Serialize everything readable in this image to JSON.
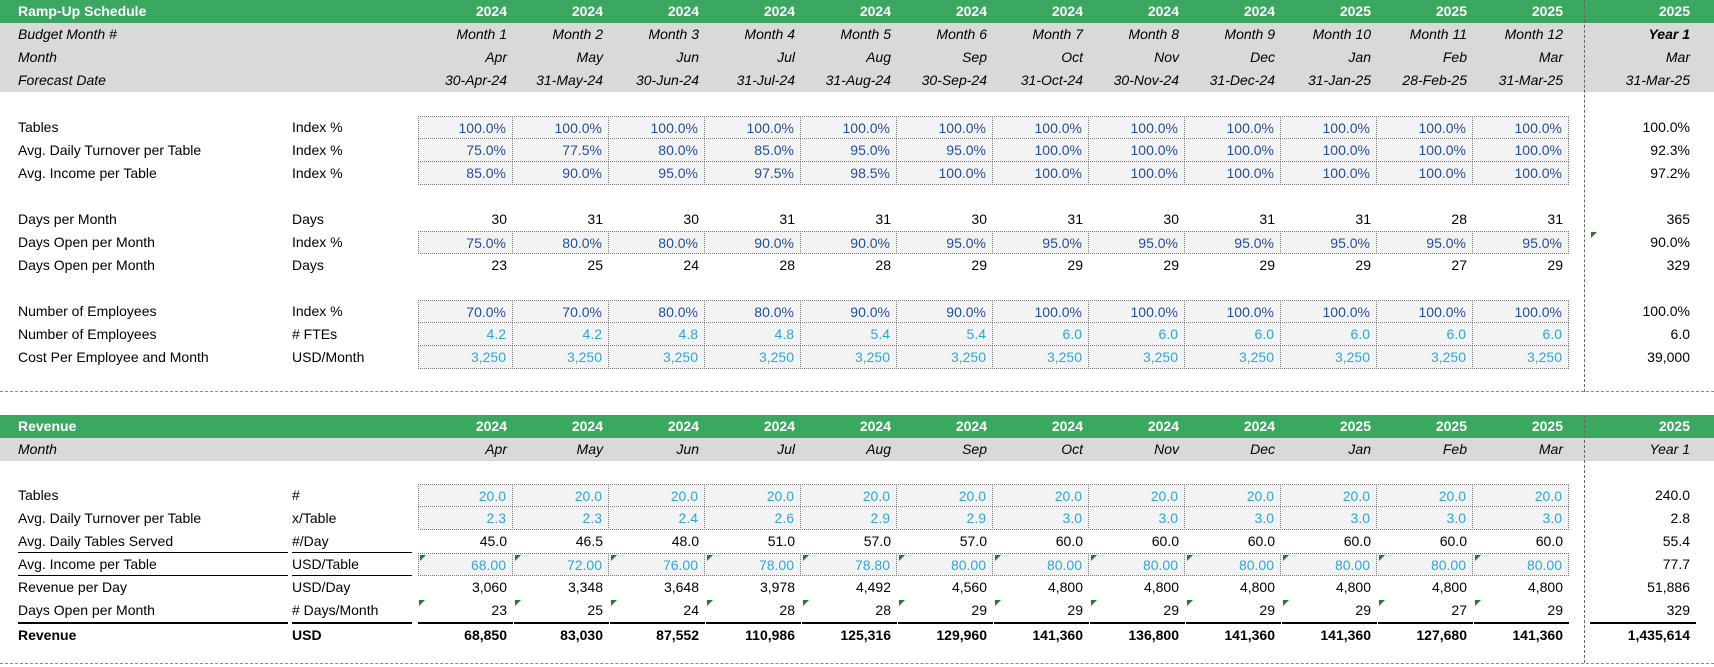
{
  "rampup": {
    "title": "Ramp-Up Schedule",
    "years": [
      "2024",
      "2024",
      "2024",
      "2024",
      "2024",
      "2024",
      "2024",
      "2024",
      "2024",
      "2025",
      "2025",
      "2025"
    ],
    "year_total": "2025",
    "budget_label": "Budget Month #",
    "budget_months": [
      "Month 1",
      "Month 2",
      "Month 3",
      "Month 4",
      "Month 5",
      "Month 6",
      "Month 7",
      "Month 8",
      "Month 9",
      "Month 10",
      "Month 11",
      "Month 12"
    ],
    "budget_total": "Year 1",
    "month_label": "Month",
    "months": [
      "Apr",
      "May",
      "Jun",
      "Jul",
      "Aug",
      "Sep",
      "Oct",
      "Nov",
      "Dec",
      "Jan",
      "Feb",
      "Mar"
    ],
    "month_total": "Mar",
    "forecast_label": "Forecast Date",
    "forecast_dates": [
      "30-Apr-24",
      "31-May-24",
      "30-Jun-24",
      "31-Jul-24",
      "31-Aug-24",
      "30-Sep-24",
      "31-Oct-24",
      "30-Nov-24",
      "31-Dec-24",
      "31-Jan-25",
      "28-Feb-25",
      "31-Mar-25"
    ],
    "forecast_total": "31-Mar-25",
    "rows": [
      {
        "label": "Tables",
        "unit": "Index %",
        "values": [
          "100.0%",
          "100.0%",
          "100.0%",
          "100.0%",
          "100.0%",
          "100.0%",
          "100.0%",
          "100.0%",
          "100.0%",
          "100.0%",
          "100.0%",
          "100.0%"
        ],
        "total": "100.0%"
      },
      {
        "label": "Avg. Daily Turnover per Table",
        "unit": "Index %",
        "values": [
          "75.0%",
          "77.5%",
          "80.0%",
          "85.0%",
          "95.0%",
          "95.0%",
          "100.0%",
          "100.0%",
          "100.0%",
          "100.0%",
          "100.0%",
          "100.0%"
        ],
        "total": "92.3%"
      },
      {
        "label": "Avg. Income per Table",
        "unit": "Index %",
        "values": [
          "85.0%",
          "90.0%",
          "95.0%",
          "97.5%",
          "98.5%",
          "100.0%",
          "100.0%",
          "100.0%",
          "100.0%",
          "100.0%",
          "100.0%",
          "100.0%"
        ],
        "total": "97.2%"
      },
      {
        "label": "Days per Month",
        "unit": "Days",
        "values": [
          "30",
          "31",
          "30",
          "31",
          "31",
          "30",
          "31",
          "30",
          "31",
          "31",
          "28",
          "31"
        ],
        "total": "365"
      },
      {
        "label": "Days Open per Month",
        "unit": "Index %",
        "values": [
          "75.0%",
          "80.0%",
          "80.0%",
          "90.0%",
          "90.0%",
          "95.0%",
          "95.0%",
          "95.0%",
          "95.0%",
          "95.0%",
          "95.0%",
          "95.0%"
        ],
        "total": "90.0%"
      },
      {
        "label": "Days Open per Month",
        "unit": "Days",
        "values": [
          "23",
          "25",
          "24",
          "28",
          "28",
          "29",
          "29",
          "29",
          "29",
          "29",
          "27",
          "29"
        ],
        "total": "329"
      },
      {
        "label": "Number of Employees",
        "unit": "Index %",
        "values": [
          "70.0%",
          "70.0%",
          "80.0%",
          "80.0%",
          "90.0%",
          "90.0%",
          "100.0%",
          "100.0%",
          "100.0%",
          "100.0%",
          "100.0%",
          "100.0%"
        ],
        "total": "100.0%"
      },
      {
        "label": "Number of Employees",
        "unit": "# FTEs",
        "values": [
          "4.2",
          "4.2",
          "4.8",
          "4.8",
          "5.4",
          "5.4",
          "6.0",
          "6.0",
          "6.0",
          "6.0",
          "6.0",
          "6.0"
        ],
        "total": "6.0"
      },
      {
        "label": "Cost Per Employee and Month",
        "unit": "USD/Month",
        "values": [
          "3,250",
          "3,250",
          "3,250",
          "3,250",
          "3,250",
          "3,250",
          "3,250",
          "3,250",
          "3,250",
          "3,250",
          "3,250",
          "3,250"
        ],
        "total": "39,000"
      }
    ]
  },
  "revenue": {
    "title": "Revenue",
    "years": [
      "2024",
      "2024",
      "2024",
      "2024",
      "2024",
      "2024",
      "2024",
      "2024",
      "2024",
      "2025",
      "2025",
      "2025"
    ],
    "year_total": "2025",
    "month_label": "Month",
    "months": [
      "Apr",
      "May",
      "Jun",
      "Jul",
      "Aug",
      "Sep",
      "Oct",
      "Nov",
      "Dec",
      "Jan",
      "Feb",
      "Mar"
    ],
    "month_total": "Year 1",
    "rows": [
      {
        "label": "Tables",
        "unit": "#",
        "values": [
          "20.0",
          "20.0",
          "20.0",
          "20.0",
          "20.0",
          "20.0",
          "20.0",
          "20.0",
          "20.0",
          "20.0",
          "20.0",
          "20.0"
        ],
        "total": "240.0"
      },
      {
        "label": "Avg. Daily Turnover per Table",
        "unit": "x/Table",
        "values": [
          "2.3",
          "2.3",
          "2.4",
          "2.6",
          "2.9",
          "2.9",
          "3.0",
          "3.0",
          "3.0",
          "3.0",
          "3.0",
          "3.0"
        ],
        "total": "2.8"
      },
      {
        "label": "Avg. Daily Tables Served",
        "unit": "#/Day",
        "values": [
          "45.0",
          "46.5",
          "48.0",
          "51.0",
          "57.0",
          "57.0",
          "60.0",
          "60.0",
          "60.0",
          "60.0",
          "60.0",
          "60.0"
        ],
        "total": "55.4"
      },
      {
        "label": "Avg. Income per Table",
        "unit": "USD/Table",
        "values": [
          "68.00",
          "72.00",
          "76.00",
          "78.00",
          "78.80",
          "80.00",
          "80.00",
          "80.00",
          "80.00",
          "80.00",
          "80.00",
          "80.00"
        ],
        "total": "77.7"
      },
      {
        "label": "Revenue per Day",
        "unit": "USD/Day",
        "values": [
          "3,060",
          "3,348",
          "3,648",
          "3,978",
          "4,492",
          "4,560",
          "4,800",
          "4,800",
          "4,800",
          "4,800",
          "4,800",
          "4,800"
        ],
        "total": "51,886"
      },
      {
        "label": "Days Open per Month",
        "unit": "# Days/Month",
        "values": [
          "23",
          "25",
          "24",
          "28",
          "28",
          "29",
          "29",
          "29",
          "29",
          "29",
          "27",
          "29"
        ],
        "total": "329"
      },
      {
        "label": "Revenue",
        "unit": "USD",
        "values": [
          "68,850",
          "83,030",
          "87,552",
          "110,986",
          "125,316",
          "129,960",
          "141,360",
          "136,800",
          "141,360",
          "141,360",
          "127,680",
          "141,360"
        ],
        "total": "1,435,614"
      }
    ]
  }
}
